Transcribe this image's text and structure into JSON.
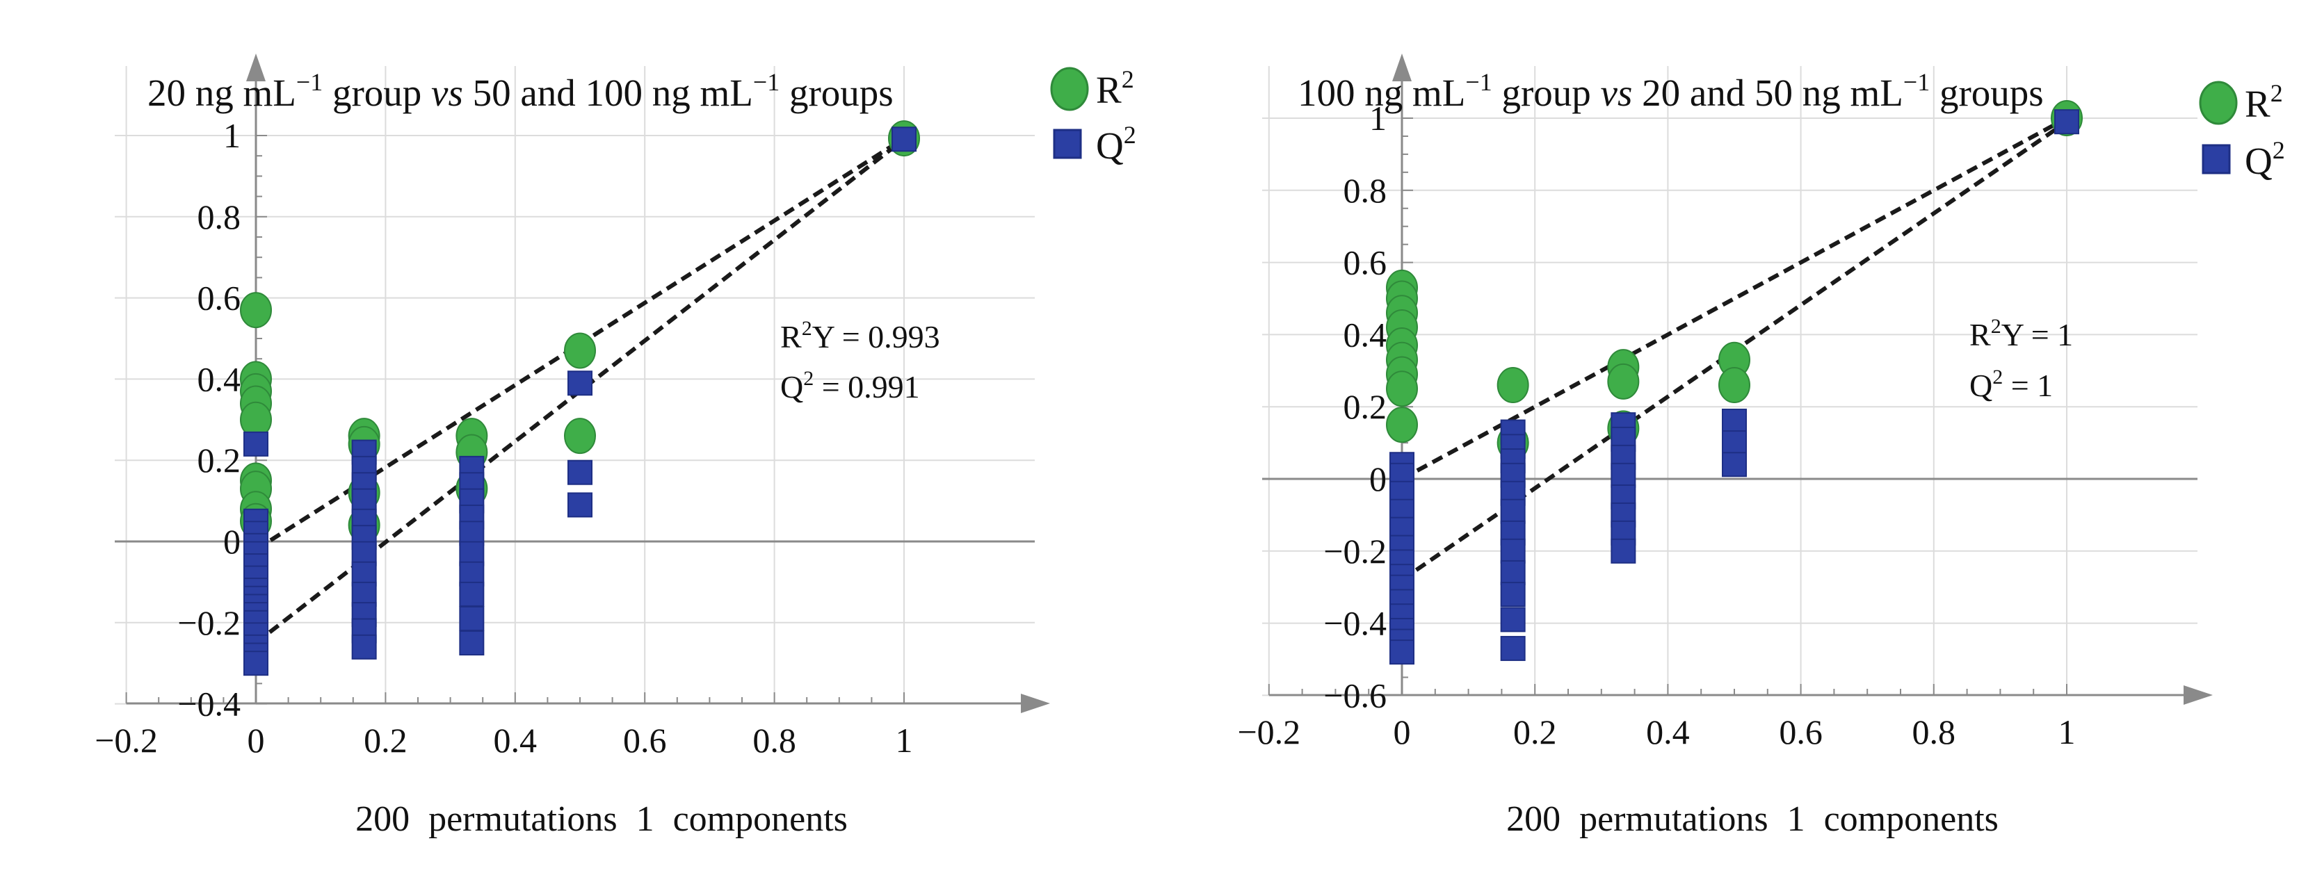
{
  "chart_data": [
    {
      "type": "scatter",
      "title": {
        "prefix": "20 ng mL",
        "prefix_sup": "−1",
        "middle_a": " group ",
        "vs": "vs",
        "middle_b": " 50 and 100 ng mL",
        "suffix_sup": "−1",
        "suffix": " groups"
      },
      "xlabel": "200 permutations 1 components",
      "xlim": [
        -0.2,
        1.2
      ],
      "ylim": [
        -0.4,
        1.1
      ],
      "xticks": [
        -0.2,
        0,
        0.2,
        0.4,
        0.6,
        0.8,
        1
      ],
      "xtick_labels": [
        "−0.2",
        "0",
        "0.2",
        "0.4",
        "0.6",
        "0.8",
        "1"
      ],
      "yticks": [
        -0.4,
        -0.2,
        0,
        0.2,
        0.4,
        0.6,
        0.8,
        1
      ],
      "ytick_labels": [
        "−0.4",
        "−0.2",
        "0",
        "0.2",
        "0.4",
        "0.6",
        "0.8",
        "1"
      ],
      "grid": true,
      "legend": [
        {
          "name": "R",
          "sup": "2",
          "color": "#3fae49",
          "marker": "circle"
        },
        {
          "name": "Q",
          "sup": "2",
          "color": "#2b3fa3",
          "marker": "square"
        }
      ],
      "annotation": {
        "r2y_label": "R",
        "r2y_sup": "2",
        "r2y_text": "Y = 0.993",
        "q2_label": "Q",
        "q2_sup": "2",
        "q2_text": " = 0.991"
      },
      "series": [
        {
          "name": "R2",
          "x": [
            0,
            0,
            0,
            0,
            0,
            0,
            0,
            0,
            0,
            0.167,
            0.167,
            0.167,
            0.167,
            0.333,
            0.333,
            0.333,
            0.5,
            0.5,
            1
          ],
          "y": [
            0.57,
            0.4,
            0.37,
            0.34,
            0.3,
            0.15,
            0.13,
            0.08,
            0.05,
            0.26,
            0.24,
            0.12,
            0.04,
            0.26,
            0.22,
            0.13,
            0.47,
            0.26,
            0.993
          ]
        },
        {
          "name": "Q2",
          "x": [
            0,
            0,
            0,
            0,
            0,
            0,
            0,
            0,
            0,
            0,
            0,
            0,
            0,
            0,
            0,
            0,
            0.167,
            0.167,
            0.167,
            0.167,
            0.167,
            0.167,
            0.167,
            0.167,
            0.167,
            0.167,
            0.167,
            0.167,
            0.333,
            0.333,
            0.333,
            0.333,
            0.333,
            0.333,
            0.333,
            0.333,
            0.333,
            0.333,
            0.5,
            0.5,
            0.5,
            1
          ],
          "y": [
            0.24,
            0.05,
            0.02,
            -0.01,
            -0.03,
            -0.06,
            -0.09,
            -0.12,
            -0.14,
            -0.16,
            -0.18,
            -0.2,
            -0.23,
            -0.26,
            -0.28,
            -0.3,
            0.22,
            0.18,
            0.14,
            0.1,
            0.05,
            0.01,
            -0.03,
            -0.08,
            -0.13,
            -0.18,
            -0.22,
            -0.26,
            0.18,
            0.14,
            0.1,
            0.06,
            0.02,
            -0.03,
            -0.08,
            -0.13,
            -0.19,
            -0.25,
            0.39,
            0.17,
            0.09,
            0.991
          ]
        }
      ],
      "regression_lines": [
        {
          "series": "R2",
          "x": [
            0,
            1
          ],
          "y": [
            -0.02,
            0.993
          ]
        },
        {
          "series": "Q2",
          "x": [
            0,
            1
          ],
          "y": [
            -0.25,
            0.991
          ]
        }
      ]
    },
    {
      "type": "scatter",
      "title": {
        "prefix": "100 ng mL",
        "prefix_sup": "−1",
        "middle_a": " group ",
        "vs": "vs",
        "middle_b": " 20 and 50 ng mL",
        "suffix_sup": "−1",
        "suffix": " groups"
      },
      "xlabel": "200 permutations 1 components",
      "xlim": [
        -0.2,
        1.2
      ],
      "ylim": [
        -0.6,
        1.1
      ],
      "xticks": [
        -0.2,
        0,
        0.2,
        0.4,
        0.6,
        0.8,
        1
      ],
      "xtick_labels": [
        "−0.2",
        "0",
        "0.2",
        "0.4",
        "0.6",
        "0.8",
        "1"
      ],
      "yticks": [
        -0.6,
        -0.4,
        -0.2,
        0,
        0.2,
        0.4,
        0.6,
        0.8,
        1
      ],
      "ytick_labels": [
        "−0.6",
        "−0.4",
        "−0.2",
        "0",
        "0.2",
        "0.4",
        "0.6",
        "0.8",
        "1"
      ],
      "grid": true,
      "legend": [
        {
          "name": "R",
          "sup": "2",
          "color": "#3fae49",
          "marker": "circle"
        },
        {
          "name": "Q",
          "sup": "2",
          "color": "#2b3fa3",
          "marker": "square"
        }
      ],
      "annotation": {
        "r2y_label": "R",
        "r2y_sup": "2",
        "r2y_text": "Y = 1",
        "q2_label": "Q",
        "q2_sup": "2",
        "q2_text": " = 1"
      },
      "series": [
        {
          "name": "R2",
          "x": [
            0,
            0,
            0,
            0,
            0,
            0,
            0,
            0,
            0,
            0.167,
            0.167,
            0.333,
            0.333,
            0.333,
            0.5,
            0.5,
            1
          ],
          "y": [
            0.53,
            0.5,
            0.46,
            0.42,
            0.37,
            0.33,
            0.29,
            0.25,
            0.15,
            0.26,
            0.1,
            0.31,
            0.27,
            0.14,
            0.33,
            0.26,
            1.0
          ]
        },
        {
          "name": "Q2",
          "x": [
            0,
            0,
            0,
            0,
            0,
            0,
            0,
            0,
            0,
            0,
            0,
            0,
            0,
            0,
            0.167,
            0.167,
            0.167,
            0.167,
            0.167,
            0.167,
            0.167,
            0.167,
            0.167,
            0.167,
            0.167,
            0.167,
            0.333,
            0.333,
            0.333,
            0.333,
            0.333,
            0.333,
            0.333,
            0.333,
            0.5,
            0.5,
            0.5,
            1
          ],
          "y": [
            0.04,
            0.01,
            -0.04,
            -0.09,
            -0.14,
            -0.19,
            -0.23,
            -0.27,
            -0.3,
            -0.34,
            -0.38,
            -0.42,
            -0.45,
            -0.48,
            0.13,
            0.09,
            0.05,
            0.01,
            -0.04,
            -0.09,
            -0.15,
            -0.2,
            -0.26,
            -0.32,
            -0.39,
            -0.47,
            0.15,
            0.11,
            0.06,
            0.01,
            -0.05,
            -0.1,
            -0.15,
            -0.2,
            0.16,
            0.1,
            0.04,
            0.99
          ]
        }
      ],
      "regression_lines": [
        {
          "series": "R2",
          "x": [
            0,
            1
          ],
          "y": [
            0.0,
            1.0
          ]
        },
        {
          "series": "Q2",
          "x": [
            0,
            1
          ],
          "y": [
            -0.28,
            0.99
          ]
        }
      ]
    }
  ]
}
